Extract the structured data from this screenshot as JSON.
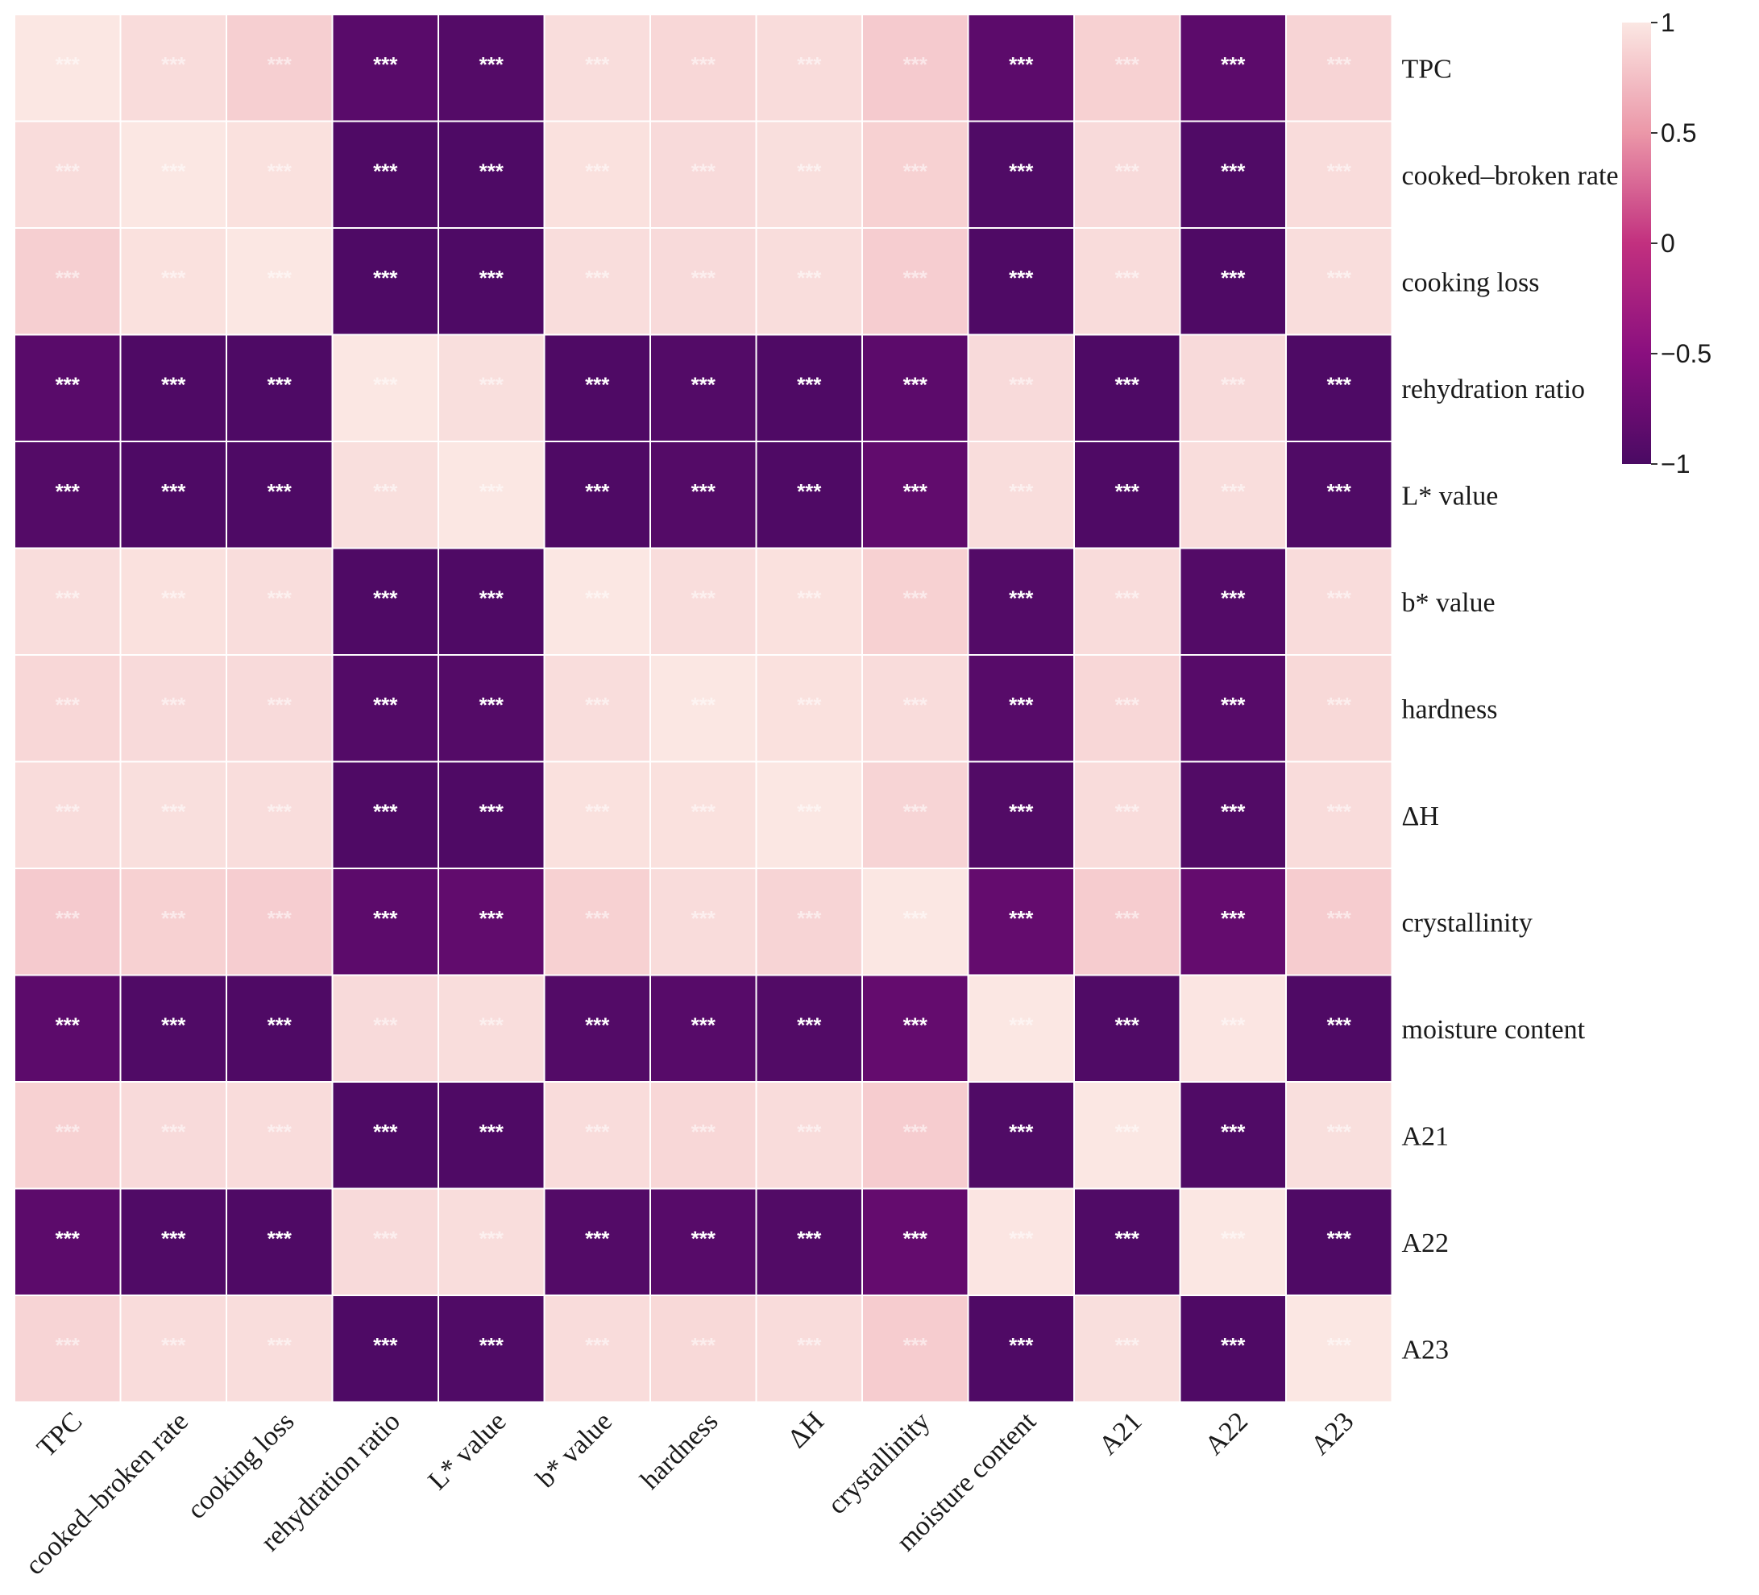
{
  "chart_data": {
    "type": "heatmap",
    "title": "",
    "xlabel": "",
    "ylabel": "",
    "variables": [
      "TPC",
      "cooked–broken rate",
      "cooking loss",
      "rehydration ratio",
      "L* value",
      "b* value",
      "hardness",
      "ΔH",
      "crystallinity",
      "moisture content",
      "A21",
      "A22",
      "A23"
    ],
    "values": [
      [
        1.0,
        0.93,
        0.85,
        -0.88,
        -0.92,
        0.94,
        0.9,
        0.93,
        0.82,
        -0.86,
        0.86,
        -0.86,
        0.88
      ],
      [
        0.93,
        1.0,
        0.96,
        -0.96,
        -0.97,
        0.96,
        0.92,
        0.95,
        0.86,
        -0.95,
        0.92,
        -0.95,
        0.93
      ],
      [
        0.85,
        0.96,
        1.0,
        -0.97,
        -0.97,
        0.94,
        0.92,
        0.94,
        0.84,
        -0.96,
        0.93,
        -0.96,
        0.94
      ],
      [
        -0.88,
        -0.96,
        -0.97,
        1.0,
        0.95,
        -0.96,
        -0.93,
        -0.96,
        -0.86,
        0.92,
        -0.97,
        0.92,
        -0.97
      ],
      [
        -0.92,
        -0.97,
        -0.97,
        0.95,
        1.0,
        -0.96,
        -0.92,
        -0.96,
        -0.82,
        0.94,
        -0.96,
        0.94,
        -0.95
      ],
      [
        0.94,
        0.96,
        0.94,
        -0.96,
        -0.96,
        1.0,
        0.94,
        0.96,
        0.86,
        -0.93,
        0.93,
        -0.93,
        0.93
      ],
      [
        0.9,
        0.92,
        0.92,
        -0.93,
        -0.92,
        0.94,
        1.0,
        0.96,
        0.93,
        -0.9,
        0.9,
        -0.9,
        0.91
      ],
      [
        0.93,
        0.95,
        0.94,
        -0.96,
        -0.96,
        0.96,
        0.96,
        1.0,
        0.88,
        -0.94,
        0.93,
        -0.94,
        0.93
      ],
      [
        0.82,
        0.86,
        0.84,
        -0.86,
        -0.82,
        0.86,
        0.93,
        0.88,
        1.0,
        -0.8,
        0.83,
        -0.8,
        0.83
      ],
      [
        -0.86,
        -0.95,
        -0.96,
        0.92,
        0.94,
        -0.93,
        -0.9,
        -0.94,
        -0.8,
        1.0,
        -0.95,
        0.99,
        -0.96
      ],
      [
        0.86,
        0.92,
        0.93,
        -0.97,
        -0.96,
        0.93,
        0.9,
        0.93,
        0.83,
        -0.95,
        1.0,
        -0.95,
        0.95
      ],
      [
        -0.86,
        -0.95,
        -0.96,
        0.92,
        0.94,
        -0.93,
        -0.9,
        -0.94,
        -0.8,
        0.99,
        -0.95,
        1.0,
        -0.96
      ],
      [
        0.88,
        0.93,
        0.94,
        -0.97,
        -0.95,
        0.93,
        0.91,
        0.93,
        0.83,
        -0.96,
        0.95,
        -0.96,
        1.0
      ]
    ],
    "significance_marker": "***",
    "colorbar": {
      "range": [
        -1,
        1
      ],
      "ticks": [
        1,
        0.5,
        0,
        -0.5,
        -1
      ],
      "tick_labels": [
        "1",
        "0.5",
        "0",
        "−0.5",
        "−1"
      ],
      "colors": {
        "-1": "#4a0a63",
        "-0.5": "#8a0f7f",
        "0": "#c2307f",
        "0.5": "#eb97a8",
        "1": "#fbe7e3"
      },
      "position": "right"
    },
    "row_labels_position": "right",
    "column_labels_rotation": -45,
    "grid": true,
    "cell_border_color": "#ffffff"
  }
}
